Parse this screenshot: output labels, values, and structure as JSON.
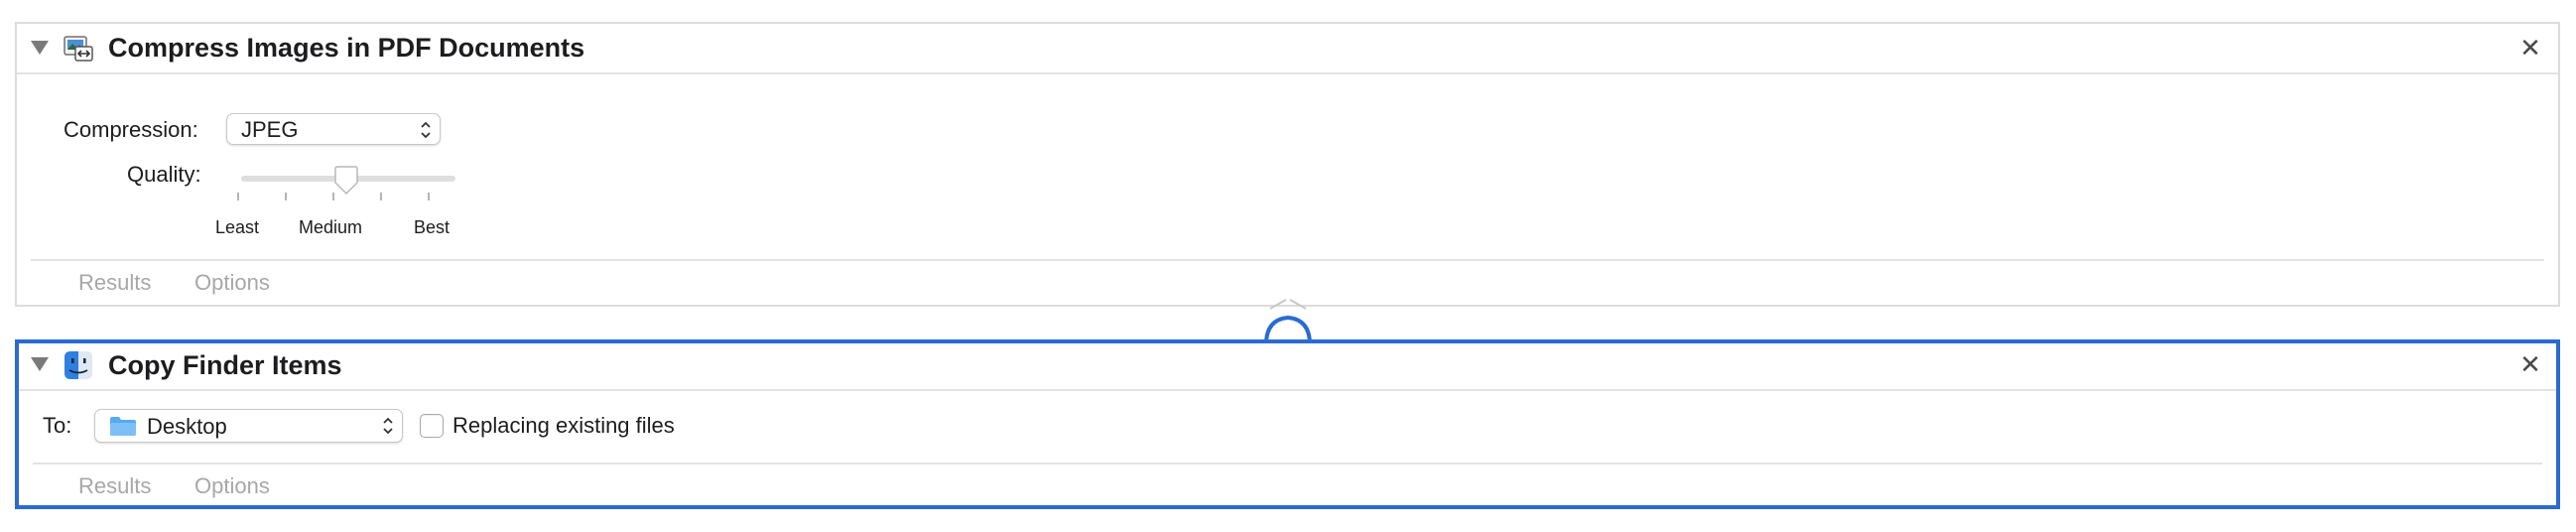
{
  "actions": [
    {
      "title": "Compress Images in PDF Documents",
      "icon": "compress-pdf-images-icon",
      "compression_label": "Compression:",
      "compression_value": "JPEG",
      "quality_label": "Quality:",
      "quality_level": 0.5,
      "quality_ticks": [
        "Least",
        "Medium",
        "Best"
      ],
      "footer_tabs": [
        "Results",
        "Options"
      ]
    },
    {
      "title": "Copy Finder Items",
      "icon": "finder-icon",
      "to_label": "To:",
      "to_value": "Desktop",
      "replacing_label": "Replacing existing files",
      "replacing_checked": false,
      "footer_tabs": [
        "Results",
        "Options"
      ],
      "selected": true
    }
  ],
  "colors": {
    "selection_border": "#2a6bd1",
    "folder_blue": "#5aaaf0",
    "muted_text": "#a7a7a7"
  }
}
